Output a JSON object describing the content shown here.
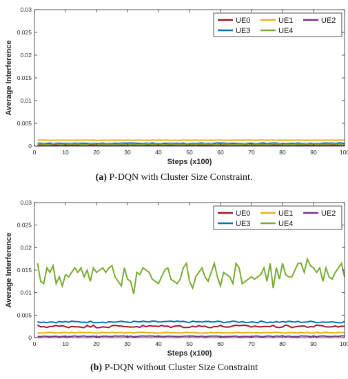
{
  "chart_data": [
    {
      "type": "line",
      "caption_letter": "(a)",
      "caption_text": "P-DQN with Cluster Size Constraint.",
      "xlabel": "Steps (x100)",
      "ylabel": "Average Interference",
      "xlim": [
        0,
        100
      ],
      "ylim": [
        0,
        0.03
      ],
      "xticks": [
        "0",
        "10",
        "20",
        "30",
        "40",
        "50",
        "60",
        "70",
        "80",
        "90",
        "100"
      ],
      "yticks": [
        "0",
        "0.005",
        "0.01",
        "0.015",
        "0.02",
        "0.025",
        "0.03"
      ],
      "legend_position": "top-right",
      "grid": false,
      "series": [
        {
          "name": "UE0",
          "color": "#a2142f",
          "level": 0.0003,
          "noise": 0.0001
        },
        {
          "name": "UE1",
          "color": "#edb120",
          "level": 0.0013,
          "noise": 3e-05
        },
        {
          "name": "UE2",
          "color": "#7e2f8e",
          "level": 0.0001,
          "noise": 3e-05
        },
        {
          "name": "UE3",
          "color": "#0072bd",
          "level": 0.0006,
          "noise": 0.0001
        },
        {
          "name": "UE4",
          "color": "#77ac30",
          "level": 0.0004,
          "noise": 0.0001
        }
      ]
    },
    {
      "type": "line",
      "caption_letter": "(b)",
      "caption_text": "P-DQN without Cluster Size Constraint",
      "xlabel": "Steps (x100)",
      "ylabel": "Average Interference",
      "xlim": [
        0,
        100
      ],
      "ylim": [
        0,
        0.03
      ],
      "xticks": [
        "0",
        "10",
        "20",
        "30",
        "40",
        "50",
        "60",
        "70",
        "80",
        "90",
        "100"
      ],
      "yticks": [
        "0",
        "0.005",
        "0.01",
        "0.015",
        "0.02",
        "0.025",
        "0.03"
      ],
      "legend_position": "top-right",
      "grid": false,
      "series": [
        {
          "name": "UE0",
          "color": "#a2142f",
          "level": 0.0025,
          "noise": 0.0003
        },
        {
          "name": "UE1",
          "color": "#edb120",
          "level": 0.0011,
          "noise": 0.0001
        },
        {
          "name": "UE2",
          "color": "#7e2f8e",
          "level": 0.0003,
          "noise": 0.0001
        },
        {
          "name": "UE3",
          "color": "#0072bd",
          "level": 0.0035,
          "noise": 0.0002
        },
        {
          "name": "UE4",
          "color": "#77ac30",
          "values": [
            0.0165,
            0.0125,
            0.012,
            0.0155,
            0.0145,
            0.016,
            0.012,
            0.0135,
            0.0115,
            0.014,
            0.0135,
            0.0145,
            0.0155,
            0.0145,
            0.0155,
            0.0135,
            0.015,
            0.0125,
            0.0155,
            0.0145,
            0.015,
            0.0155,
            0.0145,
            0.0155,
            0.016,
            0.0135,
            0.0125,
            0.0115,
            0.0155,
            0.013,
            0.0125,
            0.0097,
            0.0145,
            0.014,
            0.0155,
            0.015,
            0.0145,
            0.013,
            0.0125,
            0.012,
            0.0135,
            0.015,
            0.0155,
            0.013,
            0.0125,
            0.012,
            0.013,
            0.0155,
            0.0165,
            0.0125,
            0.011,
            0.0135,
            0.0145,
            0.0155,
            0.0135,
            0.0125,
            0.0145,
            0.0165,
            0.0135,
            0.0115,
            0.0145,
            0.014,
            0.0135,
            0.012,
            0.0165,
            0.0155,
            0.012,
            0.0125,
            0.013,
            0.0135,
            0.013,
            0.0135,
            0.014,
            0.0155,
            0.0125,
            0.0165,
            0.011,
            0.0155,
            0.013,
            0.0165,
            0.014,
            0.0135,
            0.0135,
            0.015,
            0.0165,
            0.0165,
            0.0145,
            0.0175,
            0.016,
            0.0155,
            0.0145,
            0.0155,
            0.0125,
            0.0155,
            0.0135,
            0.013,
            0.0145,
            0.0155,
            0.0165,
            0.0135
          ]
        }
      ]
    }
  ]
}
